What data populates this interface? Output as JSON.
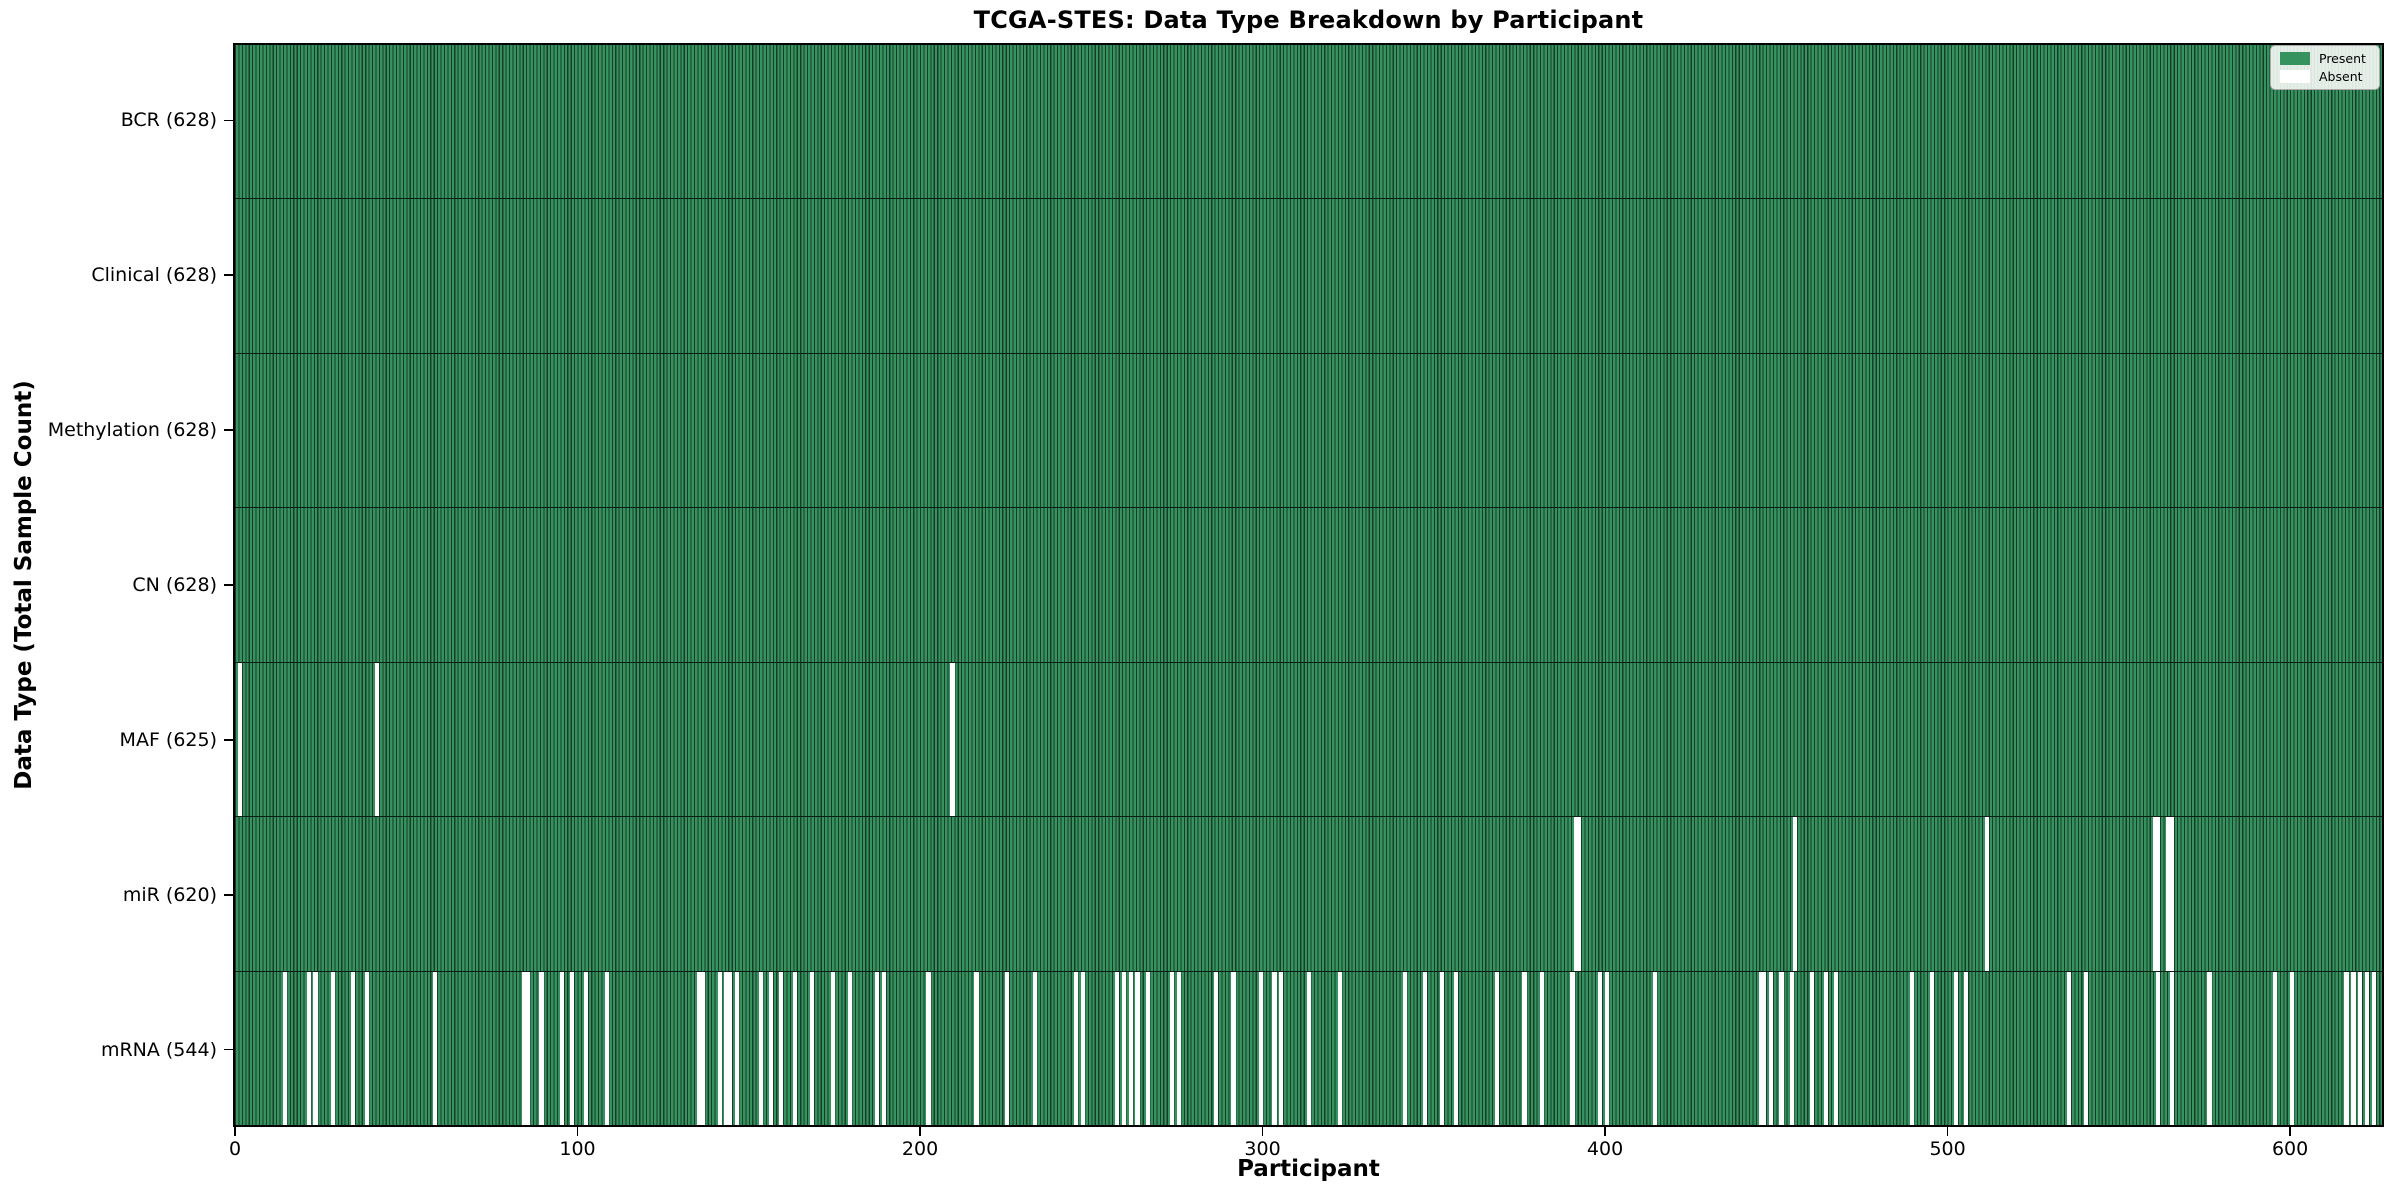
{
  "chart_data": {
    "type": "heatmap",
    "title": "TCGA-STES: Data Type Breakdown by Participant",
    "xlabel": "Participant",
    "ylabel": "Data Type (Total Sample Count)",
    "x_ticks": [
      0,
      100,
      200,
      300,
      400,
      500,
      600
    ],
    "n_participants": 628,
    "grid": false,
    "legend": {
      "position": "upper right",
      "entries": [
        {
          "label": "Present",
          "color": "#36925f"
        },
        {
          "label": "Absent",
          "color": "#ffffff"
        }
      ]
    },
    "colors": {
      "present_fill": "#36925f",
      "bar_edge": "#173d28",
      "row_divider": "#0a1f14",
      "plot_border": "#000000",
      "background": "#ffffff"
    },
    "rows": [
      {
        "key": "bcr",
        "label": "BCR (628)",
        "count": 628,
        "absent": []
      },
      {
        "key": "clinical",
        "label": "Clinical (628)",
        "count": 628,
        "absent": []
      },
      {
        "key": "methylation",
        "label": "Methylation (628)",
        "count": 628,
        "absent": []
      },
      {
        "key": "cn",
        "label": "CN (628)",
        "count": 628,
        "absent": []
      },
      {
        "key": "maf",
        "label": "MAF (625)",
        "count": 625,
        "absent": [
          1,
          41,
          209
        ]
      },
      {
        "key": "mir",
        "label": "miR (620)",
        "count": 620,
        "absent": [
          391,
          392,
          455,
          511,
          560,
          561,
          564,
          565
        ]
      },
      {
        "key": "mrna",
        "label": "mRNA (544)",
        "count": 544,
        "absent": [
          14,
          21,
          23,
          28,
          34,
          38,
          58,
          84,
          85,
          89,
          95,
          98,
          102,
          108,
          135,
          136,
          141,
          143,
          144,
          146,
          153,
          156,
          159,
          163,
          168,
          174,
          179,
          187,
          189,
          202,
          216,
          225,
          233,
          245,
          247,
          257,
          259,
          261,
          263,
          266,
          273,
          275,
          286,
          291,
          299,
          303,
          305,
          313,
          322,
          341,
          347,
          352,
          356,
          368,
          376,
          381,
          390,
          398,
          400,
          414,
          445,
          446,
          448,
          451,
          454,
          460,
          464,
          467,
          489,
          495,
          502,
          505,
          535,
          540,
          561,
          565,
          576,
          595,
          600,
          616,
          618,
          620,
          622,
          624
        ]
      }
    ]
  }
}
